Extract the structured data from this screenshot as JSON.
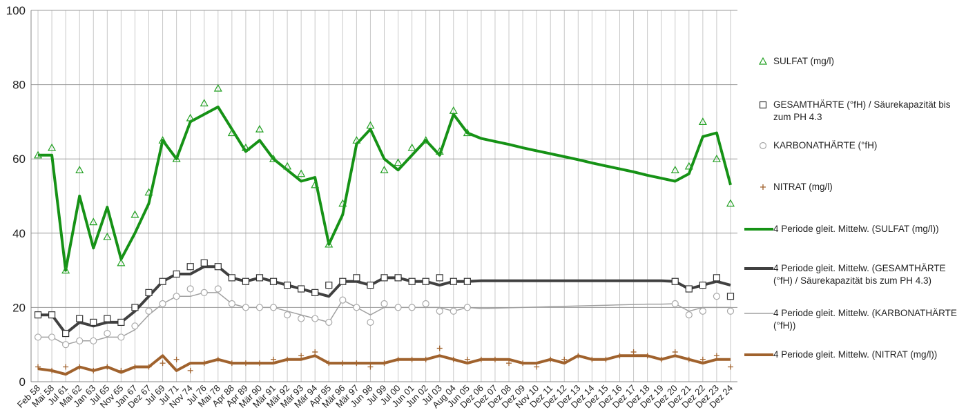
{
  "chart_data": {
    "type": "line",
    "categories": [
      "Feb 58",
      "Mai 58",
      "Jul 61",
      "Mai 62",
      "Jan 63",
      "Jul 65",
      "Nov 65",
      "Jan 67",
      "Dez 67",
      "Jul 69",
      "Jul 71",
      "Nov 74",
      "Jul 76",
      "Mai 78",
      "Apr 88",
      "Apr 89",
      "Mär 90",
      "Mär 91",
      "Mär 92",
      "Mär 93",
      "Mär 94",
      "Apr 95",
      "Mär 96",
      "Mär 97",
      "Jun 98",
      "Jul 99",
      "Jul 00",
      "Jun 01",
      "Jun 02",
      "Jul 03",
      "Aug 04",
      "Jun 05",
      "Dez 06",
      "Dez 07",
      "Dez 08",
      "Dez 09",
      "Nov 10",
      "Dez 11",
      "Dez 12",
      "Dez 13",
      "Dez 14",
      "Dez 15",
      "Dez 16",
      "Dez 17",
      "Dez 18",
      "Dez 19",
      "Dez 20",
      "Dez 21",
      "Dez 22",
      "Dez 23",
      "Dez 24"
    ],
    "ylim": [
      0,
      100
    ],
    "yticks": [
      0,
      20,
      40,
      60,
      80,
      100
    ],
    "grid": true,
    "legend": "right",
    "series": [
      {
        "name": "SULFAT (mg/l)",
        "color": "#22a022",
        "marker": "triangle",
        "values": [
          61,
          63,
          30,
          57,
          43,
          39,
          32,
          45,
          51,
          65,
          60,
          71,
          75,
          79,
          67,
          63,
          68,
          60,
          58,
          56,
          53,
          37,
          48,
          65,
          69,
          57,
          59,
          63,
          65,
          62,
          73,
          67,
          null,
          null,
          null,
          null,
          null,
          null,
          null,
          null,
          null,
          null,
          null,
          null,
          null,
          null,
          57,
          58,
          70,
          60,
          48
        ]
      },
      {
        "name": "GESAMTHÄRTE (°fH) / Säurekapazität bis zum PH 4.3",
        "color": "#333333",
        "marker": "square",
        "values": [
          18,
          18,
          13,
          17,
          16,
          17,
          16,
          20,
          24,
          27,
          29,
          31,
          32,
          31,
          28,
          27,
          28,
          27,
          26,
          25,
          24,
          26,
          27,
          28,
          26,
          28,
          28,
          27,
          27,
          28,
          27,
          27,
          null,
          null,
          null,
          null,
          null,
          null,
          null,
          null,
          null,
          null,
          null,
          null,
          null,
          null,
          27,
          25,
          26,
          28,
          23
        ]
      },
      {
        "name": "KARBONATHÄRTE (°fH)",
        "color": "#a8a8a8",
        "marker": "circle",
        "values": [
          12,
          12,
          10,
          11,
          11,
          13,
          12,
          15,
          19,
          21,
          23,
          25,
          24,
          25,
          21,
          20,
          20,
          20,
          18,
          17,
          17,
          16,
          22,
          20,
          16,
          21,
          20,
          20,
          21,
          19,
          19,
          20,
          null,
          null,
          null,
          null,
          null,
          null,
          null,
          null,
          null,
          null,
          null,
          null,
          null,
          null,
          21,
          18,
          19,
          23,
          19
        ]
      },
      {
        "name": "NITRAT (mg/l)",
        "color": "#a0622d",
        "marker": "plus",
        "values": [
          4,
          3,
          4,
          4,
          3,
          4,
          3,
          4,
          4,
          5,
          6,
          3,
          5,
          6,
          5,
          5,
          5,
          6,
          6,
          7,
          8,
          5,
          5,
          5,
          4,
          5,
          6,
          6,
          6,
          9,
          6,
          6,
          6,
          6,
          5,
          5,
          4,
          6,
          6,
          7,
          6,
          6,
          7,
          8,
          7,
          6,
          8,
          6,
          6,
          7,
          4
        ]
      },
      {
        "name": "4 Periode gleit. Mittelw. (SULFAT (mg/l))",
        "color": "#169216",
        "line_width": 4,
        "values": [
          61,
          61,
          30,
          50,
          36,
          47,
          33,
          40,
          48,
          65,
          60,
          70,
          72,
          74,
          68,
          62,
          65,
          60,
          57,
          54,
          55,
          37,
          45,
          64,
          68,
          60,
          57,
          61,
          65,
          61,
          72,
          67,
          65.5,
          64.7,
          63.9,
          63.0,
          62.2,
          61.4,
          60.6,
          59.8,
          58.9,
          58.1,
          57.3,
          56.5,
          55.6,
          54.8,
          54,
          56,
          66,
          67,
          53
        ]
      },
      {
        "name": "4 Periode gleit. Mittelw. (GESAMTHÄRTE (°fH) / Säurekapazität bis zum PH 4.3)",
        "color": "#404040",
        "line_width": 4,
        "values": [
          18,
          18,
          13,
          16,
          15,
          16,
          16,
          19,
          23,
          27,
          29,
          29,
          31,
          31,
          28,
          27,
          28,
          27,
          26,
          25,
          24,
          23,
          27,
          27,
          26,
          28,
          28,
          27,
          27,
          26,
          27,
          27,
          27.2,
          27.2,
          27.2,
          27.2,
          27.2,
          27.2,
          27.2,
          27.2,
          27.2,
          27.2,
          27.2,
          27.2,
          27.2,
          27.2,
          27,
          25,
          26,
          27,
          26
        ]
      },
      {
        "name": "4 Periode gleit. Mittelw. (KARBONATHÄRTE (°fH))",
        "color": "#a0a0a0",
        "line_width": 1.5,
        "values": [
          12,
          12,
          10,
          11,
          11,
          12,
          12,
          14,
          18,
          21,
          23,
          23,
          24,
          24,
          21,
          20,
          20,
          20,
          19,
          18,
          17,
          16,
          22,
          20,
          18,
          20,
          20,
          20,
          20,
          20,
          19,
          20,
          19.7,
          19.8,
          19.9,
          20.0,
          20.1,
          20.2,
          20.3,
          20.4,
          20.5,
          20.6,
          20.7,
          20.8,
          20.9,
          20.9,
          21,
          19,
          20,
          20,
          20
        ]
      },
      {
        "name": "4 Periode gleit. Mittelw. (NITRAT (mg/l))",
        "color": "#a0622d",
        "line_width": 4,
        "values": [
          3.5,
          3,
          2,
          4,
          3,
          4,
          2.5,
          4,
          4,
          7,
          3,
          5,
          5,
          6,
          5,
          5,
          5,
          5,
          6,
          6,
          7,
          5,
          5,
          5,
          5,
          5,
          6,
          6,
          6,
          7,
          6,
          5,
          6,
          6,
          6,
          5,
          5,
          6,
          5,
          7,
          6,
          6,
          7,
          7,
          7,
          6,
          7,
          6,
          5,
          6,
          6
        ]
      }
    ]
  }
}
